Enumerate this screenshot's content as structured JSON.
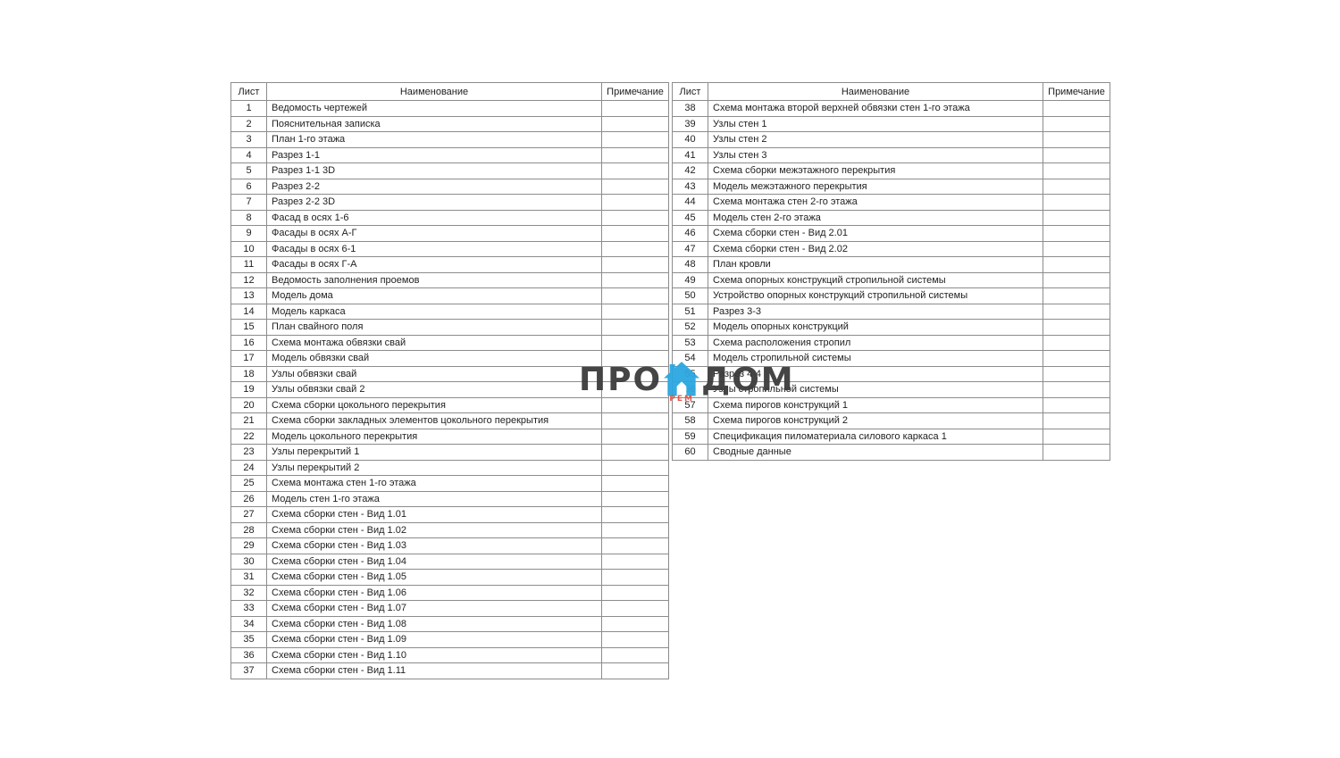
{
  "watermark": {
    "text_left": "ПРО",
    "text_right": "ДОМ",
    "sub_text": "РЕМ",
    "house_color": "#2ba7e0",
    "text_color": "#3c3c3c",
    "sub_color": "#e05243"
  },
  "left_table": {
    "headers": [
      "Лист",
      "Наименование",
      "Примечание"
    ],
    "rows": [
      [
        "1",
        "Ведомость чертежей",
        ""
      ],
      [
        "2",
        "Пояснительная записка",
        ""
      ],
      [
        "3",
        "План 1-го этажа",
        ""
      ],
      [
        "4",
        "Разрез 1-1",
        ""
      ],
      [
        "5",
        "Разрез 1-1 3D",
        ""
      ],
      [
        "6",
        "Разрез 2-2",
        ""
      ],
      [
        "7",
        "Разрез 2-2 3D",
        ""
      ],
      [
        "8",
        "Фасад в осях 1-6",
        ""
      ],
      [
        "9",
        "Фасады в осях А-Г",
        ""
      ],
      [
        "10",
        "Фасады в осях 6-1",
        ""
      ],
      [
        "11",
        "Фасады в осях Г-А",
        ""
      ],
      [
        "12",
        "Ведомость заполнения проемов",
        ""
      ],
      [
        "13",
        "Модель дома",
        ""
      ],
      [
        "14",
        "Модель каркаса",
        ""
      ],
      [
        "15",
        "План свайного поля",
        ""
      ],
      [
        "16",
        "Схема монтажа обвязки свай",
        ""
      ],
      [
        "17",
        "Модель обвязки свай",
        ""
      ],
      [
        "18",
        "Узлы обвязки свай",
        ""
      ],
      [
        "19",
        "Узлы обвязки свай 2",
        ""
      ],
      [
        "20",
        "Схема сборки цокольного перекрытия",
        ""
      ],
      [
        "21",
        "Схема сборки закладных элементов цокольного перекрытия",
        ""
      ],
      [
        "22",
        "Модель цокольного перекрытия",
        ""
      ],
      [
        "23",
        "Узлы перекрытий 1",
        ""
      ],
      [
        "24",
        "Узлы  перекрытий 2",
        ""
      ],
      [
        "25",
        "Схема монтажа стен 1-го этажа",
        ""
      ],
      [
        "26",
        "Модель стен 1-го этажа",
        ""
      ],
      [
        "27",
        "Схема сборки стен - Вид 1.01",
        ""
      ],
      [
        "28",
        "Схема сборки стен - Вид 1.02",
        ""
      ],
      [
        "29",
        "Схема сборки стен - Вид 1.03",
        ""
      ],
      [
        "30",
        "Схема сборки стен - Вид 1.04",
        ""
      ],
      [
        "31",
        "Схема сборки стен - Вид 1.05",
        ""
      ],
      [
        "32",
        "Схема сборки стен - Вид 1.06",
        ""
      ],
      [
        "33",
        "Схема сборки стен - Вид 1.07",
        ""
      ],
      [
        "34",
        "Схема сборки стен - Вид 1.08",
        ""
      ],
      [
        "35",
        "Схема сборки стен - Вид 1.09",
        ""
      ],
      [
        "36",
        "Схема сборки стен - Вид 1.10",
        ""
      ],
      [
        "37",
        "Схема сборки стен - Вид 1.11",
        ""
      ]
    ]
  },
  "right_table": {
    "headers": [
      "Лист",
      "Наименование",
      "Примечание"
    ],
    "rows": [
      [
        "38",
        "Схема монтажа второй верхней обвязки стен 1-го этажа",
        ""
      ],
      [
        "39",
        "Узлы стен 1",
        ""
      ],
      [
        "40",
        "Узлы стен 2",
        ""
      ],
      [
        "41",
        "Узлы стен 3",
        ""
      ],
      [
        "42",
        "Схема сборки межэтажного перекрытия",
        ""
      ],
      [
        "43",
        "Модель межэтажного перекрытия",
        ""
      ],
      [
        "44",
        "Схема монтажа стен 2-го этажа",
        ""
      ],
      [
        "45",
        "Модель стен 2-го этажа",
        ""
      ],
      [
        "46",
        "Схема сборки стен - Вид 2.01",
        ""
      ],
      [
        "47",
        "Схема сборки стен - Вид 2.02",
        ""
      ],
      [
        "48",
        "План кровли",
        ""
      ],
      [
        "49",
        "Схема опорных конструкций стропильной системы",
        ""
      ],
      [
        "50",
        "Устройство опорных конструкций стропильной системы",
        ""
      ],
      [
        "51",
        "Разрез 3-3",
        ""
      ],
      [
        "52",
        "Модель опорных конструкций",
        ""
      ],
      [
        "53",
        "Схема расположения стропил",
        ""
      ],
      [
        "54",
        "Модель стропильной системы",
        ""
      ],
      [
        "55",
        "Разрез 4-4",
        ""
      ],
      [
        "56",
        "Узлы стропильной системы",
        ""
      ],
      [
        "57",
        "Схема пирогов конструкций 1",
        ""
      ],
      [
        "58",
        "Схема пирогов конструкций 2",
        ""
      ],
      [
        "59",
        "Спецификация пиломатериала силового каркаса 1",
        ""
      ],
      [
        "60",
        "Сводные данные",
        ""
      ]
    ]
  }
}
